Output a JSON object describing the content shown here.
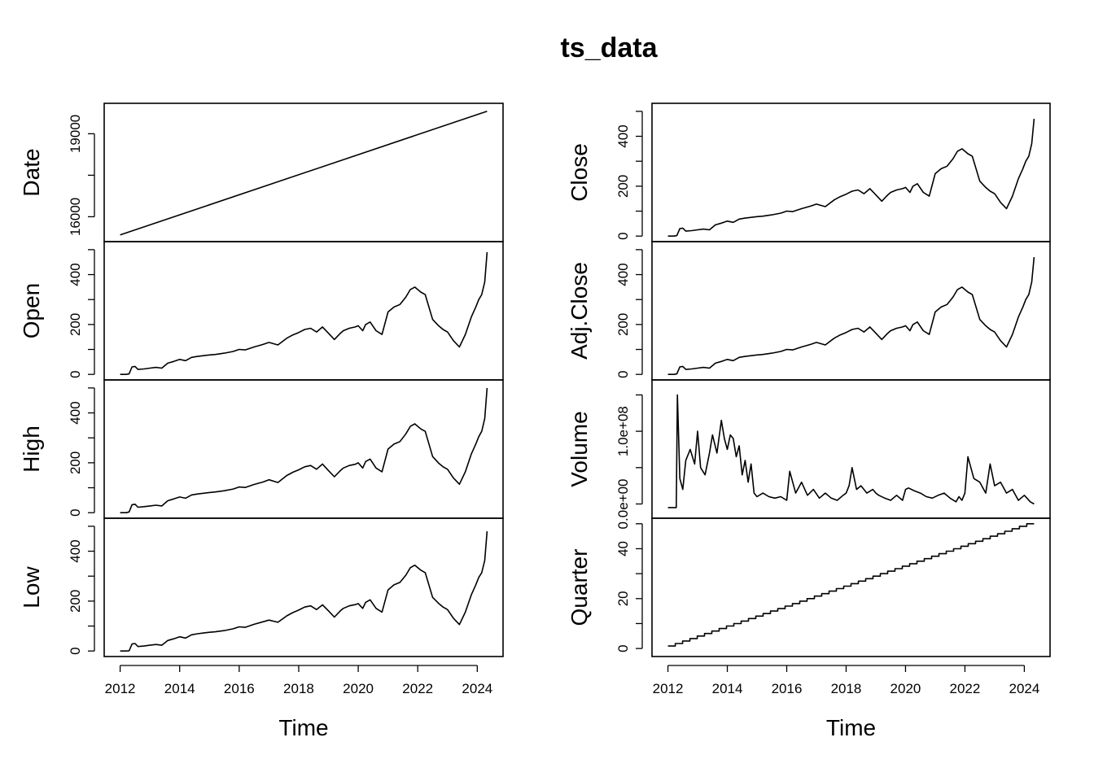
{
  "figure": {
    "title": "ts_data",
    "xlabel": "Time"
  },
  "chart_data": [
    {
      "type": "line",
      "column": "left",
      "xlim": [
        2012.0,
        2024.33
      ],
      "xticks": [
        2012,
        2014,
        2016,
        2018,
        2020,
        2022,
        2024
      ],
      "xlabel": "Time",
      "panels": [
        {
          "name": "Date",
          "ylim": [
            15300,
            19900
          ],
          "yticks": [
            16000,
            19000
          ],
          "x": [
            2012.0,
            2024.33
          ],
          "values": [
            15340,
            19815
          ]
        },
        {
          "name": "Open",
          "ylim": [
            0,
            510
          ],
          "yticks": [
            0,
            200,
            400
          ],
          "x": [
            2012.0,
            2012.2,
            2012.3,
            2012.4,
            2012.5,
            2012.6,
            2012.8,
            2013.0,
            2013.2,
            2013.4,
            2013.6,
            2013.8,
            2014.0,
            2014.2,
            2014.4,
            2014.6,
            2014.8,
            2015.0,
            2015.2,
            2015.5,
            2015.8,
            2016.0,
            2016.2,
            2016.5,
            2016.8,
            2017.0,
            2017.3,
            2017.6,
            2017.8,
            2018.0,
            2018.2,
            2018.4,
            2018.6,
            2018.8,
            2019.0,
            2019.2,
            2019.4,
            2019.5,
            2019.7,
            2019.9,
            2020.0,
            2020.15,
            2020.25,
            2020.4,
            2020.6,
            2020.8,
            2021.0,
            2021.2,
            2021.4,
            2021.6,
            2021.75,
            2021.9,
            2022.1,
            2022.25,
            2022.5,
            2022.7,
            2022.85,
            2023.0,
            2023.2,
            2023.4,
            2023.6,
            2023.8,
            2023.95,
            2024.05,
            2024.15,
            2024.25,
            2024.33
          ],
          "values": [
            0,
            0,
            2,
            30,
            32,
            20,
            22,
            25,
            28,
            25,
            45,
            52,
            60,
            55,
            68,
            72,
            75,
            78,
            80,
            85,
            92,
            100,
            98,
            110,
            120,
            128,
            118,
            145,
            158,
            168,
            180,
            185,
            170,
            190,
            165,
            140,
            165,
            175,
            185,
            190,
            195,
            175,
            200,
            210,
            175,
            160,
            250,
            270,
            280,
            310,
            340,
            350,
            330,
            320,
            220,
            195,
            180,
            170,
            135,
            110,
            160,
            230,
            270,
            300,
            320,
            370,
            490
          ]
        },
        {
          "name": "High",
          "ylim": [
            0,
            510
          ],
          "yticks": [
            0,
            200,
            400
          ],
          "x": [
            2012.0,
            2012.2,
            2012.3,
            2012.4,
            2012.5,
            2012.6,
            2012.8,
            2013.0,
            2013.2,
            2013.4,
            2013.6,
            2013.8,
            2014.0,
            2014.2,
            2014.4,
            2014.6,
            2014.8,
            2015.0,
            2015.2,
            2015.5,
            2015.8,
            2016.0,
            2016.2,
            2016.5,
            2016.8,
            2017.0,
            2017.3,
            2017.6,
            2017.8,
            2018.0,
            2018.2,
            2018.4,
            2018.6,
            2018.8,
            2019.0,
            2019.2,
            2019.4,
            2019.5,
            2019.7,
            2019.9,
            2020.0,
            2020.15,
            2020.25,
            2020.4,
            2020.6,
            2020.8,
            2021.0,
            2021.2,
            2021.4,
            2021.6,
            2021.75,
            2021.9,
            2022.1,
            2022.25,
            2022.5,
            2022.7,
            2022.85,
            2023.0,
            2023.2,
            2023.4,
            2023.6,
            2023.8,
            2023.95,
            2024.05,
            2024.15,
            2024.25,
            2024.33
          ],
          "values": [
            0,
            0,
            3,
            32,
            34,
            22,
            24,
            27,
            30,
            27,
            48,
            55,
            63,
            58,
            71,
            75,
            78,
            81,
            83,
            88,
            95,
            103,
            101,
            113,
            123,
            132,
            121,
            149,
            162,
            172,
            184,
            189,
            174,
            195,
            169,
            144,
            169,
            179,
            189,
            194,
            200,
            179,
            205,
            215,
            179,
            164,
            255,
            275,
            285,
            316,
            346,
            356,
            336,
            326,
            225,
            199,
            184,
            174,
            139,
            114,
            164,
            235,
            275,
            305,
            326,
            377,
            500
          ]
        },
        {
          "name": "Low",
          "ylim": [
            0,
            510
          ],
          "yticks": [
            0,
            200,
            400
          ],
          "x": [
            2012.0,
            2012.2,
            2012.3,
            2012.4,
            2012.5,
            2012.6,
            2012.8,
            2013.0,
            2013.2,
            2013.4,
            2013.6,
            2013.8,
            2014.0,
            2014.2,
            2014.4,
            2014.6,
            2014.8,
            2015.0,
            2015.2,
            2015.5,
            2015.8,
            2016.0,
            2016.2,
            2016.5,
            2016.8,
            2017.0,
            2017.3,
            2017.6,
            2017.8,
            2018.0,
            2018.2,
            2018.4,
            2018.6,
            2018.8,
            2019.0,
            2019.2,
            2019.4,
            2019.5,
            2019.7,
            2019.9,
            2020.0,
            2020.15,
            2020.25,
            2020.4,
            2020.6,
            2020.8,
            2021.0,
            2021.2,
            2021.4,
            2021.6,
            2021.75,
            2021.9,
            2022.1,
            2022.25,
            2022.5,
            2022.7,
            2022.85,
            2023.0,
            2023.2,
            2023.4,
            2023.6,
            2023.8,
            2023.95,
            2024.05,
            2024.15,
            2024.25,
            2024.33
          ],
          "values": [
            0,
            0,
            1,
            28,
            30,
            18,
            20,
            23,
            26,
            23,
            42,
            49,
            57,
            52,
            65,
            69,
            72,
            75,
            77,
            82,
            89,
            97,
            95,
            107,
            117,
            124,
            115,
            141,
            154,
            164,
            176,
            181,
            166,
            185,
            161,
            136,
            161,
            171,
            181,
            186,
            190,
            171,
            195,
            205,
            171,
            156,
            245,
            265,
            275,
            304,
            334,
            344,
            324,
            314,
            215,
            191,
            176,
            166,
            131,
            106,
            156,
            225,
            265,
            295,
            314,
            363,
            480
          ]
        }
      ]
    },
    {
      "type": "line",
      "column": "right",
      "xlim": [
        2012.0,
        2024.33
      ],
      "xticks": [
        2012,
        2014,
        2016,
        2018,
        2020,
        2022,
        2024
      ],
      "xlabel": "Time",
      "panels": [
        {
          "name": "Close",
          "ylim": [
            0,
            510
          ],
          "yticks": [
            0,
            200,
            400
          ],
          "x": [
            2012.0,
            2012.2,
            2012.3,
            2012.4,
            2012.5,
            2012.6,
            2012.8,
            2013.0,
            2013.2,
            2013.4,
            2013.6,
            2013.8,
            2014.0,
            2014.2,
            2014.4,
            2014.6,
            2014.8,
            2015.0,
            2015.2,
            2015.5,
            2015.8,
            2016.0,
            2016.2,
            2016.5,
            2016.8,
            2017.0,
            2017.3,
            2017.6,
            2017.8,
            2018.0,
            2018.2,
            2018.4,
            2018.6,
            2018.8,
            2019.0,
            2019.2,
            2019.4,
            2019.5,
            2019.7,
            2019.9,
            2020.0,
            2020.15,
            2020.25,
            2020.4,
            2020.6,
            2020.8,
            2021.0,
            2021.2,
            2021.4,
            2021.6,
            2021.75,
            2021.9,
            2022.1,
            2022.25,
            2022.5,
            2022.7,
            2022.85,
            2023.0,
            2023.2,
            2023.4,
            2023.6,
            2023.8,
            2023.95,
            2024.05,
            2024.15,
            2024.25,
            2024.33
          ],
          "values": [
            0,
            0,
            2,
            30,
            32,
            20,
            22,
            25,
            28,
            25,
            45,
            52,
            60,
            55,
            68,
            72,
            75,
            78,
            80,
            85,
            92,
            100,
            98,
            110,
            120,
            128,
            118,
            145,
            158,
            168,
            180,
            185,
            170,
            190,
            165,
            140,
            165,
            175,
            185,
            190,
            195,
            175,
            200,
            210,
            175,
            160,
            250,
            270,
            280,
            310,
            340,
            350,
            330,
            320,
            220,
            195,
            180,
            170,
            135,
            110,
            160,
            230,
            270,
            300,
            320,
            370,
            470
          ]
        },
        {
          "name": "Adj.Close",
          "ylim": [
            0,
            510
          ],
          "yticks": [
            0,
            200,
            400
          ],
          "x": [
            2012.0,
            2012.2,
            2012.3,
            2012.4,
            2012.5,
            2012.6,
            2012.8,
            2013.0,
            2013.2,
            2013.4,
            2013.6,
            2013.8,
            2014.0,
            2014.2,
            2014.4,
            2014.6,
            2014.8,
            2015.0,
            2015.2,
            2015.5,
            2015.8,
            2016.0,
            2016.2,
            2016.5,
            2016.8,
            2017.0,
            2017.3,
            2017.6,
            2017.8,
            2018.0,
            2018.2,
            2018.4,
            2018.6,
            2018.8,
            2019.0,
            2019.2,
            2019.4,
            2019.5,
            2019.7,
            2019.9,
            2020.0,
            2020.15,
            2020.25,
            2020.4,
            2020.6,
            2020.8,
            2021.0,
            2021.2,
            2021.4,
            2021.6,
            2021.75,
            2021.9,
            2022.1,
            2022.25,
            2022.5,
            2022.7,
            2022.85,
            2023.0,
            2023.2,
            2023.4,
            2023.6,
            2023.8,
            2023.95,
            2024.05,
            2024.15,
            2024.25,
            2024.33
          ],
          "values": [
            0,
            0,
            2,
            30,
            32,
            20,
            22,
            25,
            28,
            25,
            45,
            52,
            60,
            55,
            68,
            72,
            75,
            78,
            80,
            85,
            92,
            100,
            98,
            110,
            120,
            128,
            118,
            145,
            158,
            168,
            180,
            185,
            170,
            190,
            165,
            140,
            165,
            175,
            185,
            190,
            195,
            175,
            200,
            210,
            175,
            160,
            250,
            270,
            280,
            310,
            340,
            350,
            330,
            320,
            220,
            195,
            180,
            170,
            135,
            110,
            160,
            230,
            270,
            300,
            320,
            370,
            470
          ]
        },
        {
          "name": "Volume",
          "ylim": [
            -12000000,
            163000000
          ],
          "yticks": [
            0,
            100000000
          ],
          "ytick_labels": [
            "0.0e+00",
            "1.0e+08"
          ],
          "x": [
            2012.0,
            2012.2,
            2012.22,
            2012.28,
            2012.32,
            2012.4,
            2012.5,
            2012.6,
            2012.75,
            2012.9,
            2013.0,
            2013.1,
            2013.25,
            2013.4,
            2013.5,
            2013.65,
            2013.8,
            2013.9,
            2014.0,
            2014.1,
            2014.2,
            2014.3,
            2014.4,
            2014.5,
            2014.6,
            2014.7,
            2014.8,
            2014.9,
            2015.0,
            2015.2,
            2015.4,
            2015.6,
            2015.8,
            2016.0,
            2016.1,
            2016.3,
            2016.5,
            2016.7,
            2016.9,
            2017.1,
            2017.3,
            2017.5,
            2017.7,
            2017.9,
            2018.0,
            2018.1,
            2018.2,
            2018.35,
            2018.5,
            2018.7,
            2018.9,
            2019.0,
            2019.1,
            2019.3,
            2019.5,
            2019.7,
            2019.9,
            2020.0,
            2020.1,
            2020.3,
            2020.5,
            2020.7,
            2020.9,
            2021.1,
            2021.3,
            2021.5,
            2021.7,
            2021.8,
            2021.9,
            2022.0,
            2022.1,
            2022.3,
            2022.5,
            2022.7,
            2022.85,
            2023.0,
            2023.2,
            2023.4,
            2023.6,
            2023.8,
            2024.0,
            2024.2,
            2024.33
          ],
          "values": [
            -5000000,
            -5000000,
            -5000000,
            -5000000,
            150000000,
            35000000,
            20000000,
            60000000,
            75000000,
            55000000,
            100000000,
            50000000,
            40000000,
            70000000,
            95000000,
            70000000,
            115000000,
            90000000,
            75000000,
            95000000,
            90000000,
            65000000,
            80000000,
            40000000,
            60000000,
            30000000,
            55000000,
            15000000,
            10000000,
            15000000,
            10000000,
            8000000,
            10000000,
            5000000,
            45000000,
            15000000,
            30000000,
            12000000,
            20000000,
            8000000,
            15000000,
            8000000,
            5000000,
            12000000,
            15000000,
            25000000,
            50000000,
            20000000,
            25000000,
            15000000,
            20000000,
            15000000,
            12000000,
            8000000,
            5000000,
            12000000,
            5000000,
            20000000,
            22000000,
            18000000,
            15000000,
            10000000,
            8000000,
            12000000,
            15000000,
            8000000,
            3000000,
            10000000,
            5000000,
            15000000,
            65000000,
            35000000,
            30000000,
            15000000,
            55000000,
            25000000,
            30000000,
            15000000,
            20000000,
            5000000,
            12000000,
            3000000,
            0
          ]
        },
        {
          "name": "Quarter",
          "ylim": [
            -1,
            50
          ],
          "yticks": [
            0,
            20,
            40
          ],
          "x": [
            2012.0,
            2024.33
          ],
          "values": [
            1,
            50
          ],
          "stepped": true
        }
      ]
    }
  ]
}
